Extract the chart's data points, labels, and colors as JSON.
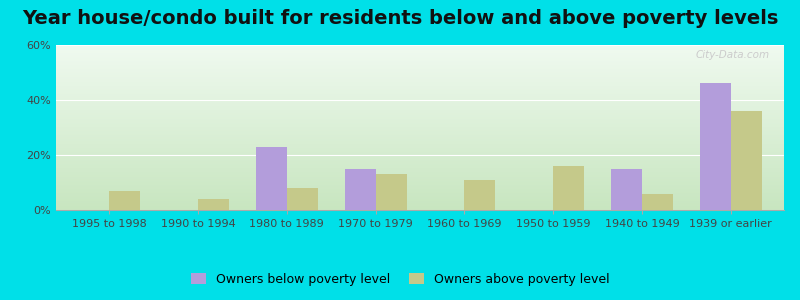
{
  "title": "Year house/condo built for residents below and above poverty levels",
  "categories": [
    "1995 to 1998",
    "1990 to 1994",
    "1980 to 1989",
    "1970 to 1979",
    "1960 to 1969",
    "1950 to 1959",
    "1940 to 1949",
    "1939 or earlier"
  ],
  "below_poverty": [
    0,
    0,
    23,
    15,
    0,
    0,
    15,
    46
  ],
  "above_poverty": [
    7,
    4,
    8,
    13,
    11,
    16,
    6,
    36
  ],
  "below_color": "#b39ddb",
  "above_color": "#c5c98a",
  "ylim": [
    0,
    60
  ],
  "yticks": [
    0,
    20,
    40,
    60
  ],
  "ytick_labels": [
    "0%",
    "20%",
    "40%",
    "60%"
  ],
  "legend_below": "Owners below poverty level",
  "legend_above": "Owners above poverty level",
  "bar_width": 0.35,
  "outer_bg": "#00e0e8",
  "title_fontsize": 14,
  "axis_fontsize": 8,
  "legend_fontsize": 9,
  "watermark": "City-Data.com"
}
